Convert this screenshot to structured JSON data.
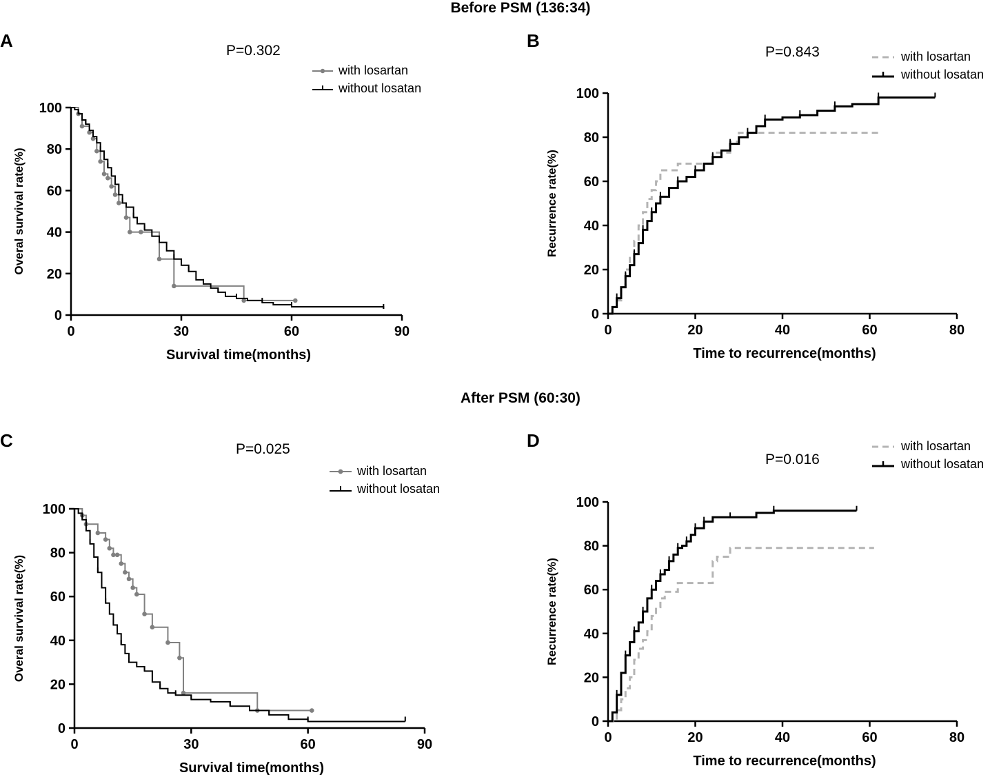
{
  "headers": {
    "before": "Before PSM (136:34)",
    "after": "After PSM (60:30)"
  },
  "colors": {
    "with_ax": "#808080",
    "without": "#000000",
    "with_rec": "#b4b4b4"
  },
  "chart_data": [
    {
      "id": "A",
      "type": "line",
      "letter": "A",
      "pvalue": "P=0.302",
      "xlabel": "Survival time(months)",
      "ylabel": "Overal survival rate(%)",
      "xlim": [
        0,
        90
      ],
      "ylim": [
        0,
        100
      ],
      "xticks": [
        0,
        30,
        60,
        90
      ],
      "yticks": [
        0,
        20,
        40,
        60,
        80,
        100
      ],
      "legend": [
        "with losartan",
        "without losatan"
      ],
      "series": [
        {
          "name": "with losartan",
          "style": "gray_dots",
          "x": [
            0,
            2,
            3,
            5,
            6,
            7,
            8,
            9,
            10,
            11,
            12,
            13,
            15,
            16,
            19,
            24,
            28,
            47,
            61
          ],
          "y": [
            100,
            97,
            91,
            88,
            85,
            79,
            74,
            68,
            66,
            62,
            58,
            54,
            47,
            40,
            40,
            27,
            14,
            7,
            7
          ]
        },
        {
          "name": "without losatan",
          "style": "black_ticks",
          "x": [
            0,
            1,
            2,
            3,
            4,
            5,
            6,
            7,
            8,
            9,
            10,
            11,
            12,
            13,
            14,
            15,
            17,
            18,
            20,
            22,
            24,
            26,
            28,
            30,
            32,
            34,
            36,
            38,
            40,
            42,
            45,
            48,
            52,
            55,
            60,
            85
          ],
          "y": [
            100,
            99,
            97,
            94,
            92,
            89,
            86,
            83,
            79,
            75,
            71,
            67,
            63,
            58,
            54,
            52,
            47,
            44,
            41,
            38,
            35,
            31,
            27,
            24,
            21,
            17,
            15,
            13,
            11,
            9,
            8,
            7,
            6,
            5,
            4,
            3
          ]
        }
      ]
    },
    {
      "id": "B",
      "type": "line",
      "letter": "B",
      "pvalue": "P=0.843",
      "xlabel": "Time to recurrence(months)",
      "ylabel": "Recurrence rate(%)",
      "xlim": [
        0,
        80
      ],
      "ylim": [
        0,
        100
      ],
      "xticks": [
        0,
        20,
        40,
        60,
        80
      ],
      "yticks": [
        0,
        20,
        40,
        60,
        80,
        100
      ],
      "legend": [
        "with losartan",
        "without losatan"
      ],
      "series": [
        {
          "name": "with losartan",
          "style": "gray_dashed",
          "x": [
            0,
            1,
            2,
            3,
            4,
            5,
            6,
            7,
            8,
            9,
            10,
            11,
            12,
            14,
            16,
            20,
            24,
            28,
            30,
            62
          ],
          "y": [
            0,
            3,
            6,
            12,
            20,
            26,
            33,
            40,
            46,
            52,
            56,
            60,
            65,
            65,
            68,
            68,
            73,
            78,
            82,
            82
          ]
        },
        {
          "name": "without losatan",
          "style": "black_ticks",
          "x": [
            0,
            1,
            2,
            3,
            4,
            5,
            6,
            7,
            8,
            9,
            10,
            11,
            12,
            14,
            16,
            18,
            20,
            22,
            24,
            26,
            28,
            30,
            32,
            34,
            36,
            40,
            44,
            48,
            52,
            56,
            62,
            75
          ],
          "y": [
            0,
            3,
            7,
            12,
            17,
            22,
            27,
            32,
            38,
            42,
            46,
            50,
            53,
            57,
            60,
            62,
            65,
            68,
            71,
            74,
            77,
            80,
            82,
            85,
            88,
            89,
            90,
            92,
            94,
            95,
            98,
            98
          ]
        }
      ]
    },
    {
      "id": "C",
      "type": "line",
      "letter": "C",
      "pvalue": "P=0.025",
      "xlabel": "Survival time(months)",
      "ylabel": "Overal survival rate(%)",
      "xlim": [
        0,
        90
      ],
      "ylim": [
        0,
        100
      ],
      "xticks": [
        0,
        30,
        60,
        90
      ],
      "yticks": [
        0,
        20,
        40,
        60,
        80,
        100
      ],
      "legend": [
        "with losartan",
        "without losatan"
      ],
      "series": [
        {
          "name": "with losartan",
          "style": "gray_dots",
          "x": [
            0,
            2,
            3,
            6,
            8,
            9,
            10,
            11,
            12,
            13,
            14,
            15,
            16,
            18,
            20,
            24,
            27,
            28,
            47,
            61
          ],
          "y": [
            100,
            97,
            93,
            89,
            86,
            82,
            79,
            79,
            75,
            71,
            68,
            64,
            61,
            52,
            46,
            39,
            32,
            16,
            8,
            8
          ]
        },
        {
          "name": "without losatan",
          "style": "black_ticks",
          "x": [
            0,
            1,
            2,
            3,
            4,
            5,
            6,
            7,
            8,
            9,
            10,
            11,
            12,
            13,
            14,
            16,
            18,
            20,
            22,
            24,
            26,
            28,
            30,
            35,
            40,
            45,
            50,
            55,
            60,
            85
          ],
          "y": [
            100,
            98,
            95,
            90,
            84,
            78,
            71,
            64,
            57,
            52,
            47,
            43,
            38,
            34,
            30,
            28,
            26,
            21,
            18,
            16,
            15,
            15,
            13,
            12,
            10,
            8,
            6,
            4,
            3,
            3
          ]
        }
      ]
    },
    {
      "id": "D",
      "type": "line",
      "letter": "D",
      "pvalue": "P=0.016",
      "xlabel": "Time to recurrence(months)",
      "ylabel": "Recurrence rate(%)",
      "xlim": [
        0,
        80
      ],
      "ylim": [
        0,
        100
      ],
      "xticks": [
        0,
        20,
        40,
        60,
        80
      ],
      "yticks": [
        0,
        20,
        40,
        60,
        80,
        100
      ],
      "legend": [
        "with losartan",
        "without losatan"
      ],
      "series": [
        {
          "name": "with losartan",
          "style": "gray_dashed",
          "x": [
            0,
            2,
            3,
            4,
            5,
            6,
            7,
            8,
            9,
            10,
            11,
            12,
            13,
            16,
            20,
            24,
            25,
            28,
            61
          ],
          "y": [
            0,
            5,
            10,
            15,
            20,
            28,
            33,
            37,
            41,
            48,
            52,
            56,
            59,
            63,
            63,
            73,
            75,
            79,
            79
          ]
        },
        {
          "name": "without losatan",
          "style": "black_ticks",
          "x": [
            0,
            1,
            2,
            3,
            4,
            5,
            6,
            7,
            8,
            9,
            10,
            11,
            12,
            13,
            14,
            15,
            16,
            17,
            18,
            19,
            20,
            21,
            22,
            24,
            28,
            34,
            38,
            44,
            57
          ],
          "y": [
            0,
            4,
            12,
            22,
            30,
            36,
            41,
            45,
            50,
            56,
            60,
            64,
            67,
            69,
            73,
            76,
            79,
            80,
            82,
            85,
            88,
            88,
            91,
            93,
            93,
            95,
            96,
            96,
            96
          ]
        }
      ]
    }
  ]
}
